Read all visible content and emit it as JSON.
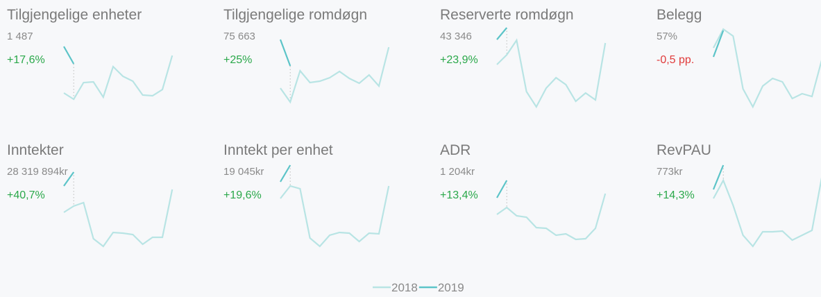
{
  "legend": [
    {
      "name": "2018",
      "color": "#b8e4e4"
    },
    {
      "name": "2019",
      "color": "#5cc4c8"
    }
  ],
  "ylim": [
    0,
    120
  ],
  "cards": [
    {
      "title": "Tilgjengelige enheter",
      "value": "1 487",
      "change": "+17,6%",
      "change_color": "#2aa84a",
      "s2018": [
        26,
        17,
        41,
        42,
        20,
        64,
        50,
        43,
        23,
        22,
        31,
        80
      ],
      "s2019": [
        93,
        68
      ]
    },
    {
      "title": "Tilgjengelige romdøgn",
      "value": "75 663",
      "change": "+25%",
      "change_color": "#2aa84a",
      "s2018": [
        33,
        13,
        58,
        41,
        43,
        48,
        57,
        47,
        40,
        52,
        36,
        92
      ],
      "s2019": [
        103,
        65
      ]
    },
    {
      "title": "Reserverte romdøgn",
      "value": "43 346",
      "change": "+23,9%",
      "change_color": "#2aa84a",
      "s2018": [
        67,
        81,
        102,
        28,
        6,
        33,
        48,
        38,
        14,
        26,
        16,
        98
      ],
      "s2019": [
        103,
        120
      ]
    },
    {
      "title": "Belegg",
      "value": "57%",
      "change": "-0,5 pp.",
      "change_color": "#e03a3a",
      "s2018": [
        91,
        118,
        108,
        32,
        6,
        36,
        47,
        42,
        18,
        25,
        21,
        74
      ],
      "s2019": [
        78,
        116
      ]
    },
    {
      "title": "Inntekter",
      "value": "28 319 894kr",
      "change": "+40,7%",
      "change_color": "#2aa84a",
      "s2018": [
        49,
        58,
        63,
        11,
        0,
        20,
        19,
        17,
        3,
        13,
        13,
        82
      ],
      "s2019": [
        87,
        107
      ]
    },
    {
      "title": "Inntekt per enhet",
      "value": "19 045kr",
      "change": "+19,6%",
      "change_color": "#2aa84a",
      "s2018": [
        69,
        87,
        83,
        12,
        0,
        16,
        20,
        19,
        7,
        19,
        18,
        87
      ],
      "s2019": [
        93,
        117
      ]
    },
    {
      "title": "ADR",
      "value": "1 204kr",
      "change": "+13,4%",
      "change_color": "#2aa84a",
      "s2018": [
        46,
        56,
        44,
        42,
        27,
        26,
        16,
        18,
        10,
        11,
        26,
        76
      ],
      "s2019": [
        70,
        95
      ]
    },
    {
      "title": "RevPAU",
      "value": "773kr",
      "change": "+14,3%",
      "change_color": "#2aa84a",
      "s2018": [
        69,
        95,
        59,
        16,
        0,
        21,
        21,
        22,
        9,
        16,
        23,
        100
      ],
      "s2019": [
        82,
        117
      ]
    }
  ]
}
